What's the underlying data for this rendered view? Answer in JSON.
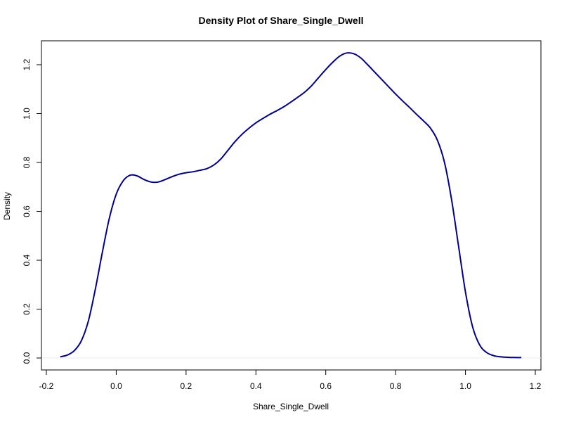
{
  "chart_data": {
    "type": "line",
    "title": "Density Plot of Share_Single_Dwell",
    "xlabel": "Share_Single_Dwell",
    "ylabel": "Density",
    "xlim": [
      -0.2,
      1.2
    ],
    "ylim": [
      0.0,
      1.2
    ],
    "x_ticks": [
      "-0.2",
      "0.0",
      "0.2",
      "0.4",
      "0.6",
      "0.8",
      "1.0",
      "1.2"
    ],
    "y_ticks": [
      "0.0",
      "0.2",
      "0.4",
      "0.6",
      "0.8",
      "1.0",
      "1.2"
    ],
    "grid": false,
    "baseline_y": 0.0,
    "line_color": "#00008B",
    "baseline_color": "#EBEBEB",
    "series": [
      {
        "x": [
          -0.16,
          -0.14,
          -0.12,
          -0.1,
          -0.08,
          -0.06,
          -0.04,
          -0.02,
          0.0,
          0.02,
          0.04,
          0.06,
          0.08,
          0.1,
          0.12,
          0.14,
          0.16,
          0.18,
          0.2,
          0.22,
          0.24,
          0.26,
          0.28,
          0.3,
          0.32,
          0.34,
          0.36,
          0.38,
          0.4,
          0.42,
          0.44,
          0.46,
          0.48,
          0.5,
          0.52,
          0.54,
          0.56,
          0.58,
          0.6,
          0.62,
          0.64,
          0.66,
          0.68,
          0.7,
          0.72,
          0.74,
          0.76,
          0.78,
          0.8,
          0.82,
          0.84,
          0.86,
          0.88,
          0.9,
          0.92,
          0.94,
          0.96,
          0.98,
          1.0,
          1.02,
          1.04,
          1.06,
          1.08,
          1.1,
          1.12,
          1.14,
          1.16
        ],
        "y": [
          0.005,
          0.012,
          0.03,
          0.07,
          0.15,
          0.28,
          0.43,
          0.57,
          0.67,
          0.725,
          0.748,
          0.745,
          0.73,
          0.72,
          0.72,
          0.73,
          0.742,
          0.752,
          0.758,
          0.762,
          0.768,
          0.775,
          0.79,
          0.815,
          0.85,
          0.885,
          0.915,
          0.94,
          0.962,
          0.98,
          0.997,
          1.012,
          1.028,
          1.047,
          1.067,
          1.088,
          1.115,
          1.148,
          1.18,
          1.21,
          1.235,
          1.248,
          1.245,
          1.228,
          1.2,
          1.17,
          1.14,
          1.11,
          1.08,
          1.052,
          1.025,
          0.997,
          0.97,
          0.94,
          0.89,
          0.8,
          0.65,
          0.46,
          0.27,
          0.13,
          0.055,
          0.023,
          0.01,
          0.005,
          0.003,
          0.002,
          0.002
        ]
      }
    ]
  }
}
